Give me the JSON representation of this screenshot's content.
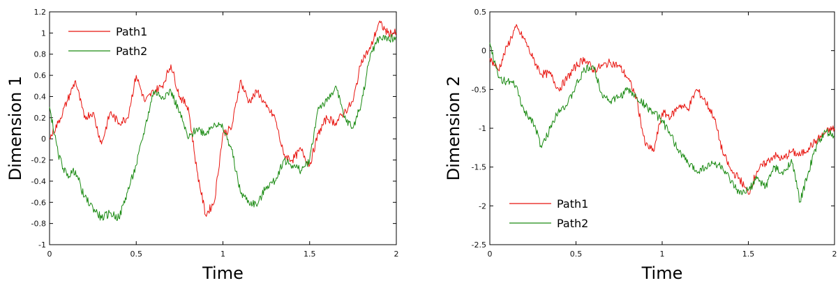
{
  "colors": {
    "path1": "#e8140f",
    "path2": "#1a8a12",
    "frame": "#000000",
    "background": "#ffffff"
  },
  "chart_data": [
    {
      "type": "line",
      "title": "",
      "xlabel": "Time",
      "ylabel": "Dimension 1",
      "xlim": [
        0,
        2
      ],
      "ylim": [
        -1,
        1.2
      ],
      "xticks": [
        "0",
        "0.5",
        "1",
        "1.5",
        "2"
      ],
      "yticks": [
        "-1",
        "-0.8",
        "-0.6",
        "-0.4",
        "-0.2",
        "0",
        "0.2",
        "0.4",
        "0.6",
        "0.8",
        "1",
        "1.2"
      ],
      "legend_position": "top-left",
      "grid": false,
      "series": [
        {
          "name": "Path1",
          "color": "#e8140f",
          "x": [
            0,
            0.05,
            0.1,
            0.15,
            0.2,
            0.25,
            0.3,
            0.35,
            0.4,
            0.45,
            0.5,
            0.55,
            0.6,
            0.65,
            0.7,
            0.75,
            0.8,
            0.85,
            0.9,
            0.95,
            1.0,
            1.05,
            1.1,
            1.15,
            1.2,
            1.25,
            1.3,
            1.35,
            1.4,
            1.45,
            1.5,
            1.55,
            1.6,
            1.65,
            1.7,
            1.75,
            1.8,
            1.85,
            1.9,
            1.95,
            2.0
          ],
          "y": [
            0.0,
            0.15,
            0.35,
            0.55,
            0.2,
            0.25,
            -0.05,
            0.25,
            0.15,
            0.2,
            0.6,
            0.35,
            0.45,
            0.5,
            0.7,
            0.4,
            0.3,
            -0.3,
            -0.72,
            -0.6,
            0.05,
            0.1,
            0.55,
            0.35,
            0.45,
            0.3,
            0.2,
            -0.15,
            -0.2,
            -0.1,
            -0.25,
            0.05,
            0.2,
            0.15,
            0.25,
            0.35,
            0.75,
            0.85,
            1.1,
            1.0,
            1.0
          ]
        },
        {
          "name": "Path2",
          "color": "#1a8a12",
          "x": [
            0,
            0.05,
            0.1,
            0.15,
            0.2,
            0.25,
            0.3,
            0.35,
            0.4,
            0.45,
            0.5,
            0.55,
            0.6,
            0.65,
            0.7,
            0.75,
            0.8,
            0.85,
            0.9,
            0.95,
            1.0,
            1.05,
            1.1,
            1.15,
            1.2,
            1.25,
            1.3,
            1.35,
            1.4,
            1.45,
            1.5,
            1.55,
            1.6,
            1.65,
            1.7,
            1.75,
            1.8,
            1.85,
            1.9,
            1.95,
            2.0
          ],
          "y": [
            0.3,
            -0.15,
            -0.35,
            -0.3,
            -0.55,
            -0.65,
            -0.75,
            -0.7,
            -0.75,
            -0.5,
            -0.25,
            0.1,
            0.45,
            0.4,
            0.45,
            0.25,
            0.0,
            0.1,
            0.05,
            0.15,
            0.1,
            -0.1,
            -0.5,
            -0.6,
            -0.62,
            -0.45,
            -0.4,
            -0.2,
            -0.25,
            -0.3,
            -0.2,
            0.3,
            0.35,
            0.5,
            0.2,
            0.1,
            0.35,
            0.8,
            0.95,
            0.95,
            0.95
          ]
        }
      ]
    },
    {
      "type": "line",
      "title": "",
      "xlabel": "Time",
      "ylabel": "Dimension 2",
      "xlim": [
        0,
        2
      ],
      "ylim": [
        -2.5,
        0.5
      ],
      "xticks": [
        "0",
        "0.5",
        "1",
        "1.5",
        "2"
      ],
      "yticks": [
        "-2.5",
        "-2",
        "-1.5",
        "-1",
        "-0.5",
        "0",
        "0.5"
      ],
      "legend_position": "bottom-left",
      "grid": false,
      "series": [
        {
          "name": "Path1",
          "color": "#e8140f",
          "x": [
            0,
            0.05,
            0.1,
            0.15,
            0.2,
            0.25,
            0.3,
            0.35,
            0.4,
            0.45,
            0.5,
            0.55,
            0.6,
            0.65,
            0.7,
            0.75,
            0.8,
            0.85,
            0.9,
            0.95,
            1.0,
            1.05,
            1.1,
            1.15,
            1.2,
            1.25,
            1.3,
            1.35,
            1.4,
            1.45,
            1.5,
            1.55,
            1.6,
            1.65,
            1.7,
            1.75,
            1.8,
            1.85,
            1.9,
            1.95,
            2.0
          ],
          "y": [
            -0.1,
            -0.25,
            0.05,
            0.3,
            0.15,
            -0.1,
            -0.3,
            -0.3,
            -0.5,
            -0.35,
            -0.2,
            -0.1,
            -0.25,
            -0.2,
            -0.15,
            -0.2,
            -0.35,
            -0.6,
            -1.2,
            -1.3,
            -0.8,
            -0.85,
            -0.7,
            -0.75,
            -0.5,
            -0.65,
            -0.85,
            -1.3,
            -1.55,
            -1.65,
            -1.85,
            -1.55,
            -1.45,
            -1.35,
            -1.4,
            -1.3,
            -1.35,
            -1.25,
            -1.15,
            -1.05,
            -1.0
          ]
        },
        {
          "name": "Path2",
          "color": "#1a8a12",
          "x": [
            0,
            0.05,
            0.1,
            0.15,
            0.2,
            0.25,
            0.3,
            0.35,
            0.4,
            0.45,
            0.5,
            0.55,
            0.6,
            0.65,
            0.7,
            0.75,
            0.8,
            0.85,
            0.9,
            0.95,
            1.0,
            1.05,
            1.1,
            1.15,
            1.2,
            1.25,
            1.3,
            1.35,
            1.4,
            1.45,
            1.5,
            1.55,
            1.6,
            1.65,
            1.7,
            1.75,
            1.8,
            1.85,
            1.9,
            1.95,
            2.0
          ],
          "y": [
            0.1,
            -0.35,
            -0.4,
            -0.45,
            -0.8,
            -0.9,
            -1.25,
            -1.0,
            -0.75,
            -0.7,
            -0.45,
            -0.25,
            -0.2,
            -0.55,
            -0.65,
            -0.6,
            -0.5,
            -0.6,
            -0.7,
            -0.8,
            -0.9,
            -1.1,
            -1.3,
            -1.45,
            -1.55,
            -1.5,
            -1.45,
            -1.5,
            -1.7,
            -1.85,
            -1.8,
            -1.65,
            -1.75,
            -1.5,
            -1.6,
            -1.4,
            -1.95,
            -1.55,
            -1.2,
            -1.05,
            -1.1
          ]
        }
      ]
    }
  ]
}
